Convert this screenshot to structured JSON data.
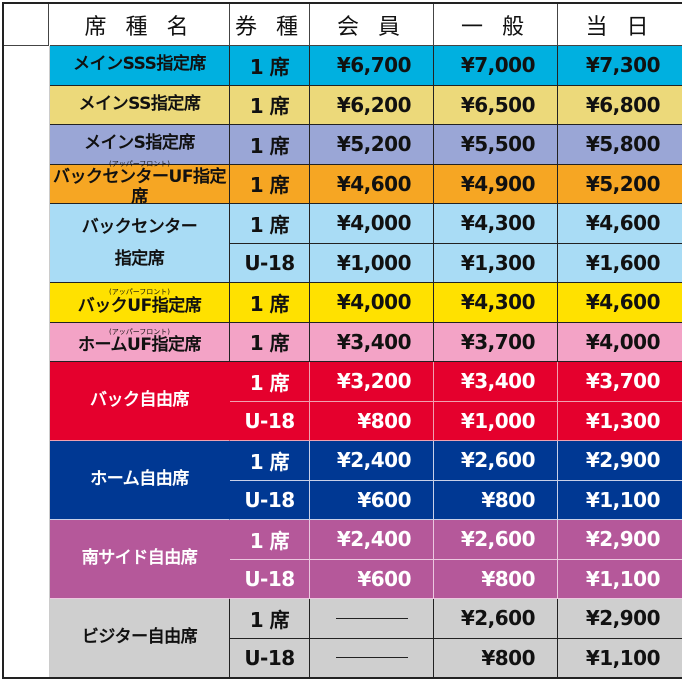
{
  "header": {
    "name": "席 種 名",
    "type": "券 種",
    "member": "会 員",
    "general": "一 般",
    "same_day": "当 日"
  },
  "groups": [
    {
      "name": "メインSSS指定席",
      "color": "#00b0e0",
      "text": "#111",
      "border": "#222",
      "tickets": [
        {
          "type": "1 席",
          "member": "¥6,700",
          "general": "¥7,000",
          "same_day": "¥7,300"
        }
      ]
    },
    {
      "name": "メインSS指定席",
      "color": "#ecd97a",
      "text": "#111",
      "border": "#222",
      "tickets": [
        {
          "type": "1 席",
          "member": "¥6,200",
          "general": "¥6,500",
          "same_day": "¥6,800"
        }
      ]
    },
    {
      "name": "メインS指定席",
      "color": "#9aa6d6",
      "text": "#111",
      "border": "#222",
      "tickets": [
        {
          "type": "1 席",
          "member": "¥5,200",
          "general": "¥5,500",
          "same_day": "¥5,800"
        }
      ]
    },
    {
      "name": "バックセンターUF指定席",
      "sub": "(アッパーフロント)",
      "color": "#f6a623",
      "text": "#111",
      "border": "#222",
      "tickets": [
        {
          "type": "1 席",
          "member": "¥4,600",
          "general": "¥4,900",
          "same_day": "¥5,200"
        }
      ]
    },
    {
      "name": "バックセンター\n指定席",
      "color": "#a9dcf5",
      "text": "#111",
      "border": "#222",
      "tickets": [
        {
          "type": "1 席",
          "member": "¥4,000",
          "general": "¥4,300",
          "same_day": "¥4,600"
        },
        {
          "type": "U-18",
          "member": "¥1,000",
          "general": "¥1,300",
          "same_day": "¥1,600"
        }
      ]
    },
    {
      "name": "バックUF指定席",
      "sub": "(アッパーフロント)",
      "color": "#ffe100",
      "text": "#111",
      "border": "#222",
      "tickets": [
        {
          "type": "1 席",
          "member": "¥4,000",
          "general": "¥4,300",
          "same_day": "¥4,600"
        }
      ]
    },
    {
      "name": "ホームUF指定席",
      "sub": "(アッパーフロント)",
      "color": "#f3a3c6",
      "text": "#111",
      "border": "#222",
      "tickets": [
        {
          "type": "1 席",
          "member": "¥3,400",
          "general": "¥3,700",
          "same_day": "¥4,000"
        }
      ]
    },
    {
      "name": "バック自由席",
      "color": "#e5002d",
      "text": "#fff",
      "border": "#f0a0b0",
      "tickets": [
        {
          "type": "1 席",
          "member": "¥3,200",
          "general": "¥3,400",
          "same_day": "¥3,700"
        },
        {
          "type": "U-18",
          "member": "¥800",
          "general": "¥1,000",
          "same_day": "¥1,300"
        }
      ]
    },
    {
      "name": "ホーム自由席",
      "color": "#003893",
      "text": "#fff",
      "border": "#c8d0e8",
      "tickets": [
        {
          "type": "1 席",
          "member": "¥2,400",
          "general": "¥2,600",
          "same_day": "¥2,900"
        },
        {
          "type": "U-18",
          "member": "¥600",
          "general": "¥800",
          "same_day": "¥1,100"
        }
      ]
    },
    {
      "name": "南サイド自由席",
      "color": "#b5589a",
      "text": "#fff",
      "border": "#ecc8e0",
      "tickets": [
        {
          "type": "1 席",
          "member": "¥2,400",
          "general": "¥2,600",
          "same_day": "¥2,900"
        },
        {
          "type": "U-18",
          "member": "¥600",
          "general": "¥800",
          "same_day": "¥1,100"
        }
      ]
    },
    {
      "name": "ビジター自由席",
      "color": "#cfcfcf",
      "text": "#111",
      "border": "#222",
      "tickets": [
        {
          "type": "1 席",
          "member": "",
          "general": "¥2,600",
          "same_day": "¥2,900"
        },
        {
          "type": "U-18",
          "member": "",
          "general": "¥800",
          "same_day": "¥1,100"
        }
      ]
    }
  ]
}
